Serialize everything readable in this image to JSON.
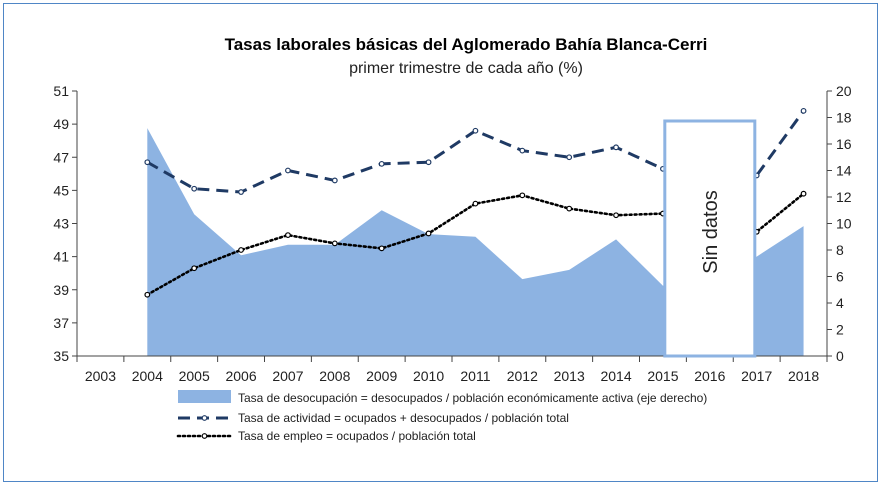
{
  "chart_data": {
    "type": "area",
    "title": "Tasas laborales básicas del Aglomerado Bahía Blanca-Cerri",
    "subtitle": "primer trimestre de cada año (%)",
    "categories": [
      "2003",
      "2004",
      "2005",
      "2006",
      "2007",
      "2008",
      "2009",
      "2010",
      "2011",
      "2012",
      "2013",
      "2014",
      "2015",
      "2016",
      "2017",
      "2018"
    ],
    "y_left": {
      "min": 35,
      "max": 51,
      "ticks": [
        35,
        37,
        39,
        41,
        43,
        45,
        47,
        49,
        51
      ]
    },
    "y_right": {
      "min": 0,
      "max": 20,
      "ticks": [
        0,
        2,
        4,
        6,
        8,
        10,
        12,
        14,
        16,
        18,
        20
      ]
    },
    "series": [
      {
        "name": "Tasa de desocupación = desocupados / población económicamente activa (eje derecho)",
        "kind": "area",
        "axis": "right",
        "color": "#8db3e2",
        "values": [
          null,
          17.2,
          10.7,
          7.6,
          8.4,
          8.4,
          11.0,
          9.2,
          9.0,
          5.8,
          6.5,
          8.8,
          5.3,
          null,
          7.5,
          9.8
        ]
      },
      {
        "name": "Tasa de actividad = ocupados + desocupados / población total",
        "kind": "dashed-line",
        "axis": "left",
        "color": "#1f3a64",
        "values": [
          null,
          46.7,
          45.1,
          44.9,
          46.2,
          45.6,
          46.6,
          46.7,
          48.6,
          47.4,
          47.0,
          47.6,
          46.3,
          null,
          45.9,
          49.8
        ]
      },
      {
        "name": "Tasa de empleo = ocupados / población total",
        "kind": "dotted-line",
        "axis": "left",
        "color": "#000000",
        "values": [
          null,
          38.7,
          40.3,
          41.4,
          42.3,
          41.8,
          41.5,
          42.4,
          44.2,
          44.7,
          43.9,
          43.5,
          43.6,
          null,
          42.5,
          44.8
        ]
      }
    ],
    "annotation": {
      "text": "Sin datos",
      "category": "2016"
    },
    "legend_position": "bottom",
    "grid": false
  }
}
